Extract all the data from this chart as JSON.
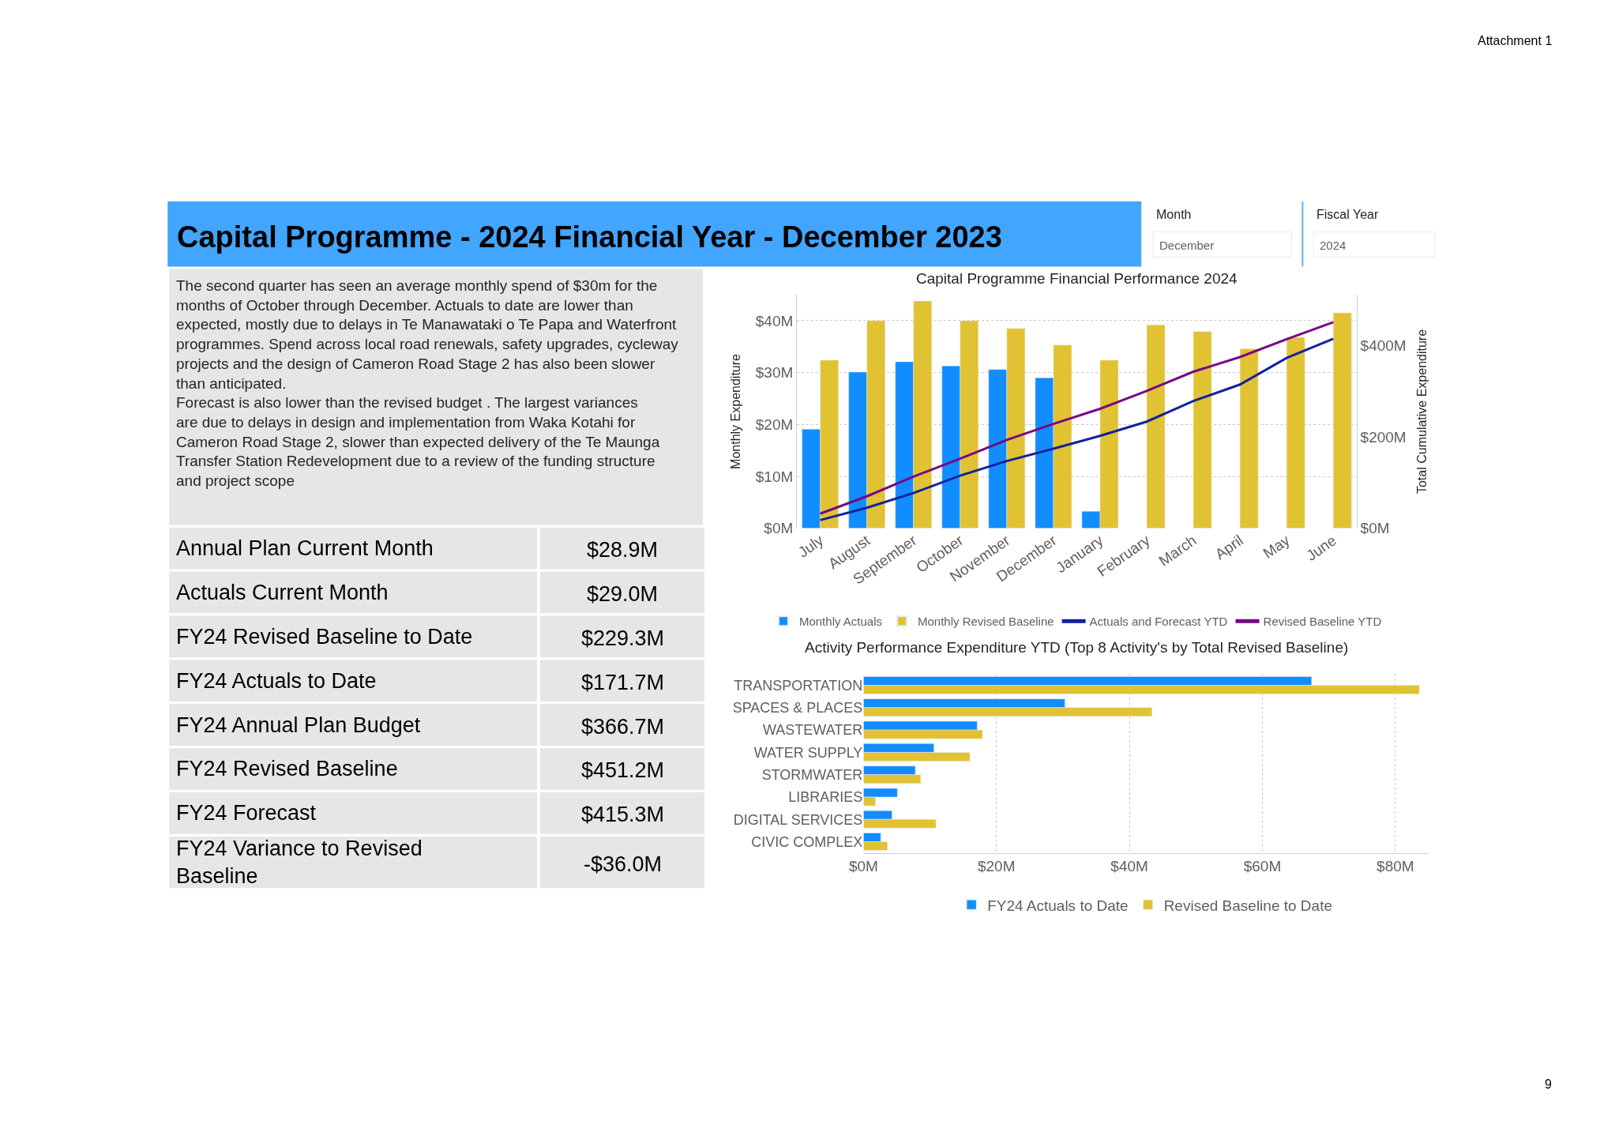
{
  "chart_data": [
    {
      "type": "other",
      "title": "Capital Programme - 2024 Financial Year - December 2023",
      "annotations": [
        "The second quarter has seen an average monthly spend of $30m for the months of October through December. Actuals to date are lower than expected, mostly due to delays in Te Manawataki o Te Papa and Waterfront programmes. Spend across local road renewals, safety upgrades, cycleway projects and the design of Cameron Road Stage 2 has also been slower than anticipated.",
        "Forecast is also lower than the revised budget . The largest variances are due to delays in design and implementation from Waka Kotahi for Cameron Road Stage 2, slower than expected delivery of the Te Maunga Transfer Station Redevelopment due to a review of the funding structure and project scope",
        "Month",
        "December",
        "Fiscal Year",
        "2024",
        "Attachment 1",
        "9"
      ]
    },
    {
      "type": "other",
      "categories": [
        "Annual Plan Current Month",
        "Actuals Current Month",
        "FY24 Revised Baseline to Date",
        "FY24 Actuals to Date",
        "FY24 Annual Plan Budget",
        "FY24 Revised Baseline",
        "FY24 Forecast",
        "FY24 Variance to Revised Baseline"
      ],
      "value_labels": [
        "$28.9M",
        "$29.0M",
        "$229.3M",
        "$171.7M",
        "$366.7M",
        "$451.2M",
        "$415.3M",
        "-$36.0M"
      ]
    },
    {
      "type": "bar",
      "title": "Capital Programme Financial Performance 2024",
      "ylabel": "Monthly Expenditure",
      "y2label": "Total Cumulative Expenditure",
      "categories": [
        "July",
        "August",
        "September",
        "October",
        "November",
        "December",
        "January",
        "February",
        "March",
        "April",
        "May",
        "June"
      ],
      "series": [
        {
          "name": "Monthly Actuals",
          "type": "bar",
          "color": "#118dff",
          "values": [
            19.1,
            30.1,
            32.1,
            31.3,
            30.6,
            29.0,
            3.3,
            null,
            null,
            null,
            null,
            null
          ]
        },
        {
          "name": "Monthly Revised Baseline",
          "type": "bar",
          "color": "#e1c233",
          "values": [
            32.4,
            40.0,
            43.8,
            40.0,
            38.5,
            35.3,
            32.4,
            39.2,
            37.9,
            34.6,
            36.8,
            41.5
          ]
        },
        {
          "name": "Actuals and Forecast YTD",
          "type": "line",
          "axis": "y2",
          "color": "#12239e",
          "values": [
            18,
            45,
            77,
            115,
            147,
            174,
            202,
            233,
            278,
            314,
            372,
            414
          ]
        },
        {
          "name": "Revised Baseline YTD",
          "type": "line",
          "axis": "y2",
          "color": "#750985",
          "values": [
            32,
            70,
            113,
            152,
            193,
            228,
            261,
            300,
            342,
            374,
            413,
            450
          ]
        }
      ],
      "ylim": [
        0,
        45
      ],
      "yticks": [
        {
          "value": 0,
          "label": "$0M"
        },
        {
          "value": 10,
          "label": "$10M"
        },
        {
          "value": 20,
          "label": "$20M"
        },
        {
          "value": 30,
          "label": "$30M"
        },
        {
          "value": 40,
          "label": "$40M"
        }
      ],
      "y2lim": [
        0,
        510
      ],
      "y2ticks": [
        {
          "value": 0,
          "label": "$0M"
        },
        {
          "value": 200,
          "label": "$200M"
        },
        {
          "value": 400,
          "label": "$400M"
        }
      ],
      "grid": "y",
      "legend": "bottom"
    },
    {
      "type": "bar",
      "orientation": "horizontal",
      "title": "Activity Performance Expenditure YTD (Top 8 Activity's by Total Revised Baseline)",
      "categories": [
        "TRANSPORTATION",
        "SPACES & PLACES",
        "WASTEWATER",
        "WATER SUPPLY",
        "STORMWATER",
        "LIBRARIES",
        "DIGITAL SERVICES",
        "CIVIC COMPLEX"
      ],
      "series": [
        {
          "name": "FY24 Actuals to Date",
          "color": "#118dff",
          "values": [
            67.4,
            30.3,
            17.1,
            10.6,
            7.8,
            5.1,
            4.3,
            2.6
          ]
        },
        {
          "name": "Revised Baseline to Date",
          "color": "#e1c233",
          "values": [
            83.6,
            43.4,
            17.9,
            16.0,
            8.6,
            1.8,
            10.9,
            3.6
          ]
        }
      ],
      "xlim": [
        0,
        85
      ],
      "xticks": [
        {
          "value": 0,
          "label": "$0M"
        },
        {
          "value": 20,
          "label": "$20M"
        },
        {
          "value": 40,
          "label": "$40M"
        },
        {
          "value": 60,
          "label": "$60M"
        },
        {
          "value": 80,
          "label": "$80M"
        }
      ],
      "grid": "x",
      "legend": "bottom"
    }
  ]
}
